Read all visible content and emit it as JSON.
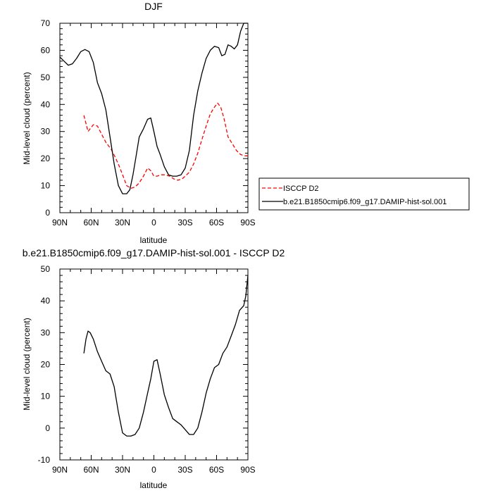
{
  "chart_data": [
    {
      "type": "line",
      "title": "DJF",
      "xlabel": "latitude",
      "ylabel": "Mid-level cloud (percent)",
      "ylim": [
        0,
        70
      ],
      "xlim": [
        -90,
        90
      ],
      "yticks": [
        0,
        10,
        20,
        30,
        40,
        50,
        60,
        70
      ],
      "xticks": [
        {
          "value": -90,
          "label": "90N"
        },
        {
          "value": -60,
          "label": "60N"
        },
        {
          "value": -30,
          "label": "30N"
        },
        {
          "value": 0,
          "label": "0"
        },
        {
          "value": 30,
          "label": "30S"
        },
        {
          "value": 60,
          "label": "60S"
        },
        {
          "value": 90,
          "label": "90S"
        }
      ],
      "legend_position": "right",
      "series": [
        {
          "name": "ISCCP D2",
          "color": "#ff0000",
          "dash": "dashed",
          "x": [
            -67,
            -63,
            -58,
            -54,
            -50,
            -46,
            -41,
            -37,
            -33,
            -29,
            -26,
            -22,
            -18,
            -14,
            -10,
            -6,
            -3,
            0,
            3,
            7,
            11,
            15,
            19,
            23,
            27,
            30,
            34,
            38,
            42,
            46,
            50,
            54,
            58,
            61,
            64,
            67,
            71,
            75,
            79,
            83,
            87,
            90
          ],
          "y": [
            36,
            30,
            32.5,
            32,
            29,
            26,
            23.5,
            20.5,
            17,
            13,
            10,
            9,
            9.5,
            11,
            13.5,
            16.5,
            15.5,
            13.5,
            13.5,
            14,
            14,
            13.5,
            12.5,
            12,
            12.5,
            13.5,
            15,
            18,
            22,
            27,
            32,
            36.5,
            39,
            40.5,
            39,
            35,
            28,
            25.5,
            23,
            21.5,
            21,
            21
          ]
        },
        {
          "name": "b.e21.B1850cmip6.f09_g17.DAMIP-hist-sol.001",
          "color": "#000000",
          "dash": "solid",
          "x": [
            -90,
            -86,
            -82,
            -78,
            -74,
            -70,
            -66,
            -62,
            -58,
            -54,
            -50,
            -46,
            -42,
            -38,
            -34,
            -30,
            -26,
            -23,
            -20,
            -17,
            -14,
            -10,
            -6,
            -3,
            0,
            3,
            6,
            10,
            14,
            18,
            22,
            26,
            30,
            34,
            38,
            42,
            46,
            50,
            54,
            58,
            62,
            65,
            68,
            71,
            74,
            77,
            80,
            83,
            86,
            88,
            90
          ],
          "y": [
            57.5,
            56,
            54.5,
            55,
            57,
            59.5,
            60.3,
            59.5,
            55.5,
            48,
            44,
            38,
            28,
            18,
            10,
            7,
            7,
            8.5,
            14,
            21,
            28,
            31,
            34.5,
            35,
            30,
            24.5,
            21.5,
            17,
            14,
            13.5,
            13.5,
            14,
            16.5,
            23,
            36,
            45,
            51.5,
            57,
            60,
            61.5,
            61,
            58,
            58.5,
            62,
            61.5,
            60.5,
            62,
            67,
            70,
            70,
            70
          ]
        }
      ]
    },
    {
      "type": "line",
      "title": "b.e21.B1850cmip6.f09_g17.DAMIP-hist-sol.001 - ISCCP D2",
      "xlabel": "latitude",
      "ylabel": "Mid-level cloud (percent)",
      "ylim": [
        -10,
        50
      ],
      "xlim": [
        -90,
        90
      ],
      "yticks": [
        -10,
        0,
        10,
        20,
        30,
        40,
        50
      ],
      "xticks": [
        {
          "value": -90,
          "label": "90N"
        },
        {
          "value": -60,
          "label": "60N"
        },
        {
          "value": -30,
          "label": "30N"
        },
        {
          "value": 0,
          "label": "0"
        },
        {
          "value": 30,
          "label": "30S"
        },
        {
          "value": 60,
          "label": "60S"
        },
        {
          "value": 90,
          "label": "90S"
        }
      ],
      "series": [
        {
          "color": "#000000",
          "dash": "solid",
          "x": [
            -67,
            -65,
            -63,
            -61,
            -58,
            -54,
            -50,
            -46,
            -42,
            -38,
            -34,
            -30,
            -26,
            -22,
            -18,
            -14,
            -10,
            -6,
            -3,
            0,
            3,
            6,
            10,
            14,
            18,
            22,
            26,
            30,
            34,
            38,
            42,
            46,
            50,
            54,
            58,
            62,
            66,
            70,
            74,
            78,
            82,
            86,
            88,
            90
          ],
          "y": [
            23.5,
            28,
            30.5,
            30,
            28,
            24,
            21,
            18,
            17,
            13,
            5,
            -1.5,
            -2.5,
            -2.5,
            -2,
            0,
            5,
            11,
            15.5,
            21,
            21.5,
            17,
            10.5,
            6.5,
            3,
            2,
            1,
            -0.5,
            -2,
            -2,
            0,
            5,
            11,
            15.5,
            19,
            20,
            23.5,
            25.5,
            29,
            32.5,
            37,
            38.5,
            41.5,
            48
          ]
        }
      ]
    }
  ]
}
